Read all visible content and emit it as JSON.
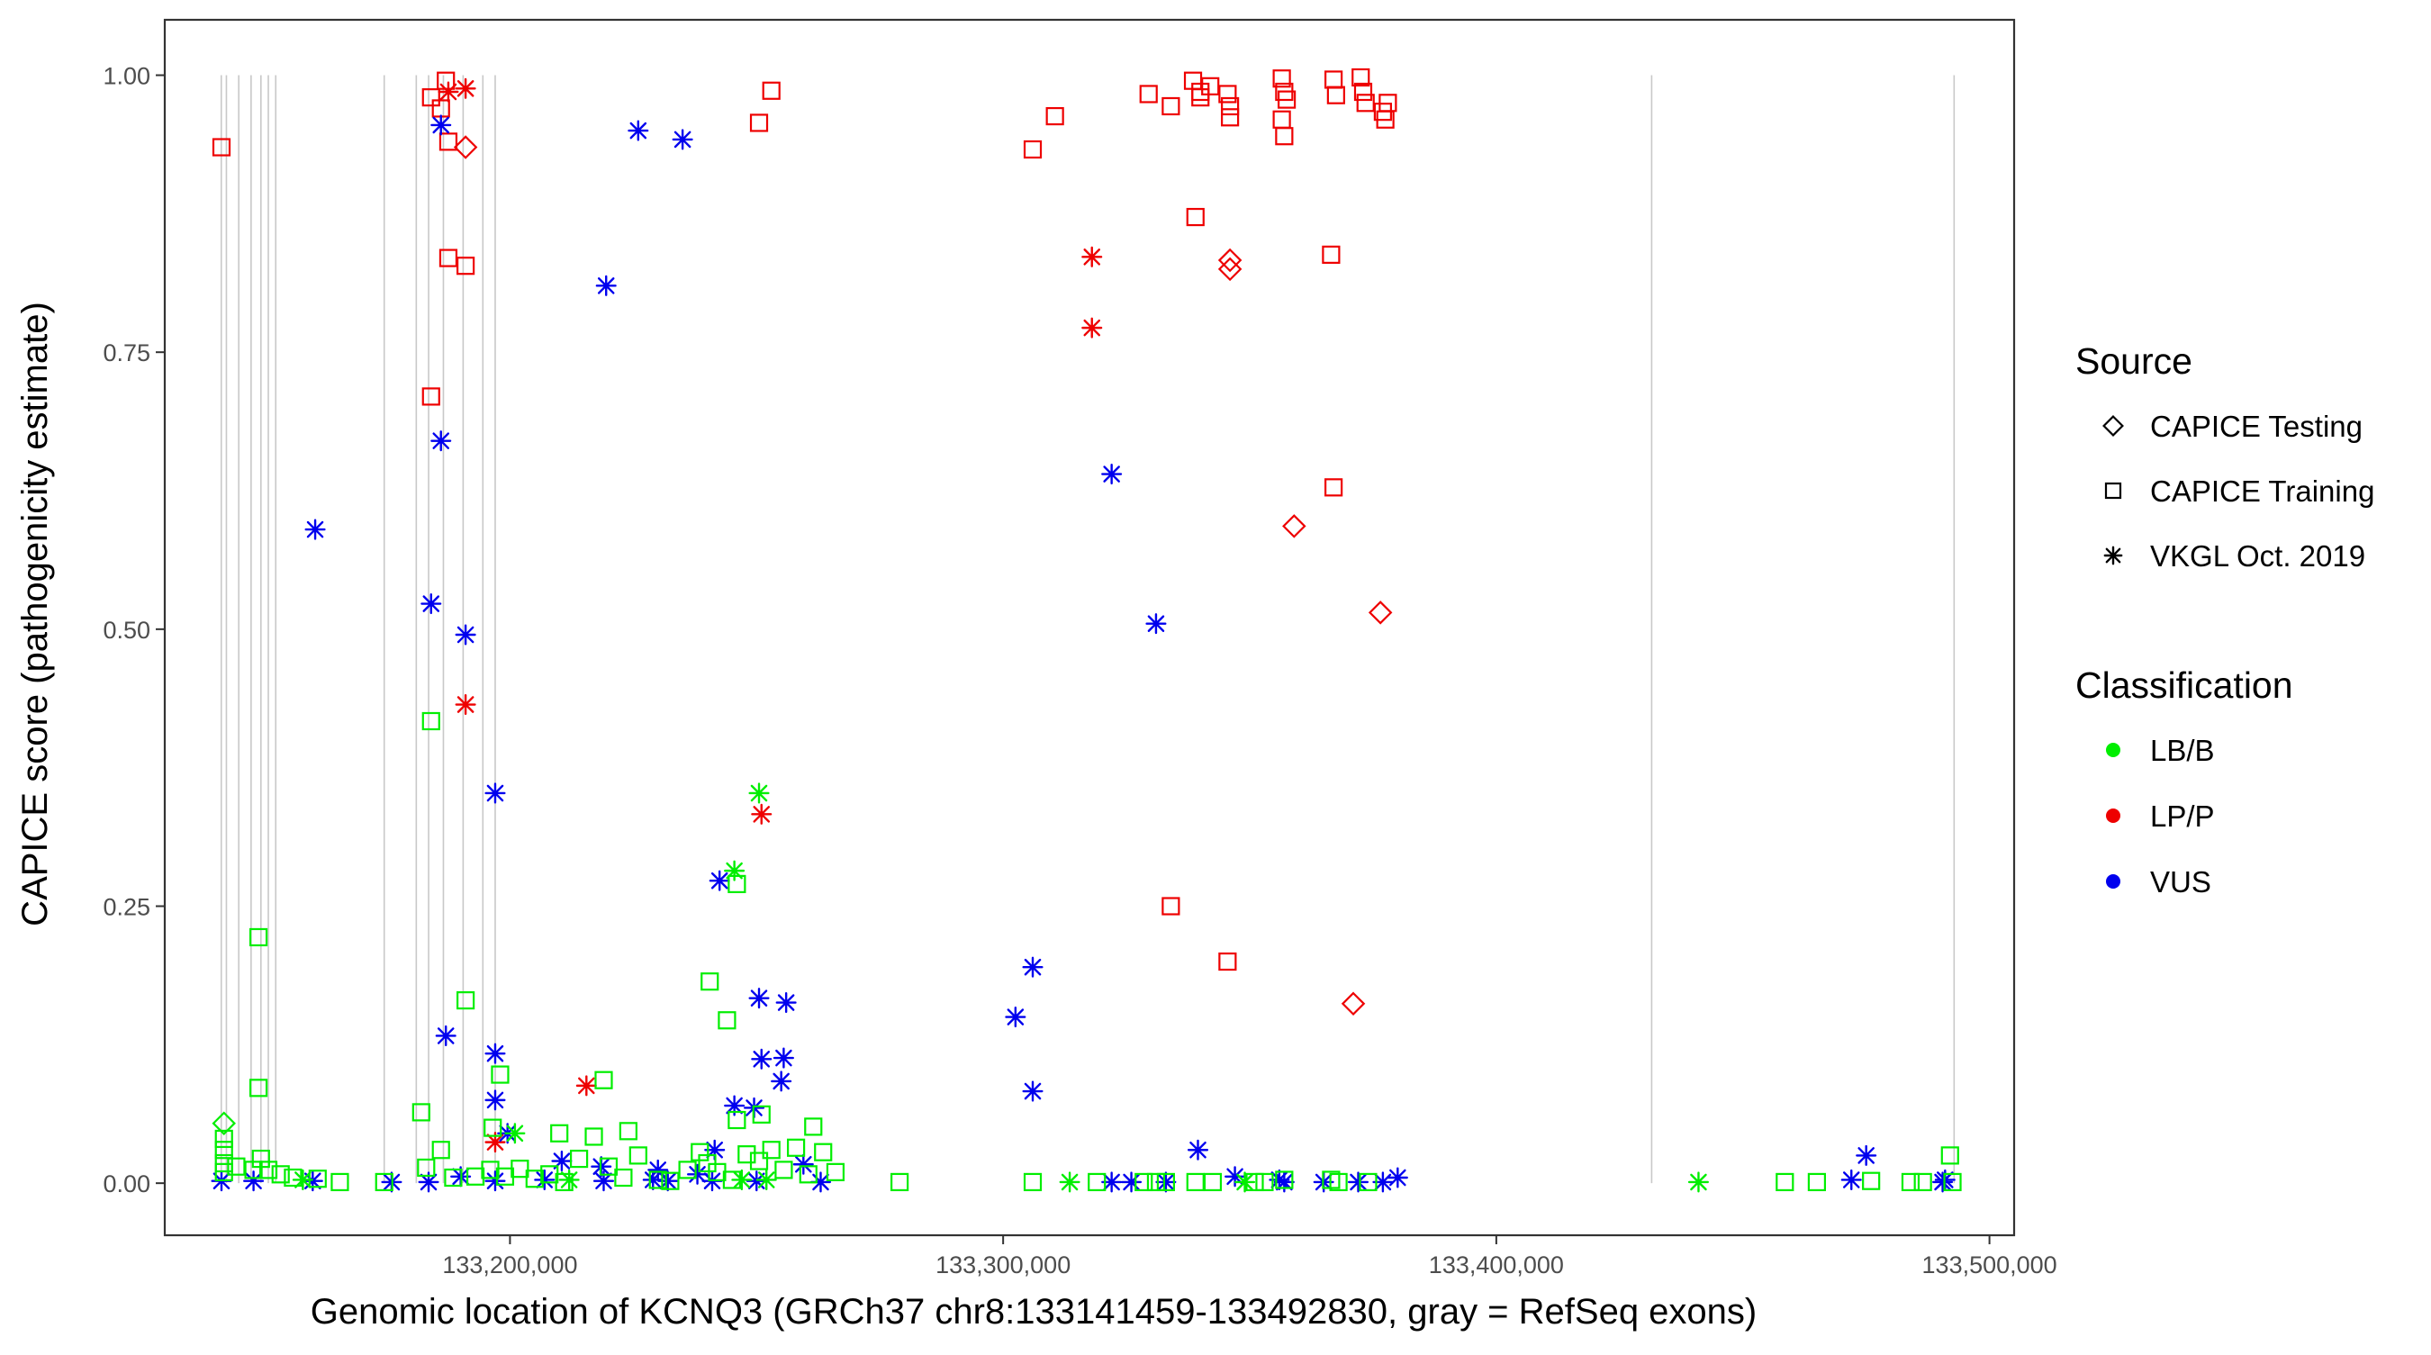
{
  "chart_data": {
    "type": "scatter",
    "xlabel": "Genomic location of KCNQ3 (GRCh37 chr8:133141459-133492830, gray = RefSeq exons)",
    "ylabel": "CAPICE score (pathogenicity estimate)",
    "xlim": [
      133130000,
      133505000
    ],
    "ylim": [
      -0.047,
      1.05
    ],
    "x_ticks": [
      133200000,
      133300000,
      133400000,
      133500000
    ],
    "x_tick_labels": [
      "133,200,000",
      "133,300,000",
      "133,400,000",
      "133,500,000"
    ],
    "y_ticks": [
      0,
      0.25,
      0.5,
      0.75,
      1.0
    ],
    "y_tick_labels": [
      "0.00",
      "0.25",
      "0.50",
      "0.75",
      "1.00"
    ],
    "grid": false,
    "exons": [
      133141459,
      133142500,
      133145000,
      133147500,
      133149500,
      133151000,
      133152500,
      133174500,
      133181000,
      133183500,
      133186500,
      133190500,
      133194500,
      133197000,
      133431500,
      133492830
    ],
    "colors": {
      "LB/B": "#00ee00",
      "LP/P": "#ee0000",
      "VUS": "#0000ee"
    },
    "legend": {
      "source_title": "Source",
      "source_items": [
        {
          "label": "CAPICE Testing",
          "shape": "diamond"
        },
        {
          "label": "CAPICE Training",
          "shape": "square"
        },
        {
          "label": "VKGL Oct. 2019",
          "shape": "asterisk"
        }
      ],
      "class_title": "Classification",
      "class_items": [
        {
          "label": "LB/B",
          "color": "#00ee00"
        },
        {
          "label": "LP/P",
          "color": "#ee0000"
        },
        {
          "label": "VUS",
          "color": "#0000ee"
        }
      ]
    },
    "series": [
      {
        "name": "CAPICE Training - LP/P",
        "shape": "square",
        "class": "LP/P",
        "points": [
          [
            133141500,
            0.935
          ],
          [
            133184000,
            0.98
          ],
          [
            133186000,
            0.97
          ],
          [
            133187000,
            0.995
          ],
          [
            133187500,
            0.94
          ],
          [
            133187500,
            0.835
          ],
          [
            133191000,
            0.828
          ],
          [
            133184000,
            0.71
          ],
          [
            133250500,
            0.957
          ],
          [
            133253000,
            0.986
          ],
          [
            133306000,
            0.933
          ],
          [
            133310500,
            0.963
          ],
          [
            133329500,
            0.983
          ],
          [
            133334000,
            0.972
          ],
          [
            133338500,
            0.995
          ],
          [
            133340000,
            0.985
          ],
          [
            133340000,
            0.98
          ],
          [
            133342000,
            0.99
          ],
          [
            133345500,
            0.983
          ],
          [
            133346000,
            0.972
          ],
          [
            133346000,
            0.962
          ],
          [
            133356500,
            0.997
          ],
          [
            133357000,
            0.985
          ],
          [
            133357500,
            0.978
          ],
          [
            133356500,
            0.96
          ],
          [
            133357000,
            0.945
          ],
          [
            133367000,
            0.996
          ],
          [
            133367500,
            0.982
          ],
          [
            133372500,
            0.998
          ],
          [
            133373000,
            0.985
          ],
          [
            133373500,
            0.975
          ],
          [
            133377000,
            0.967
          ],
          [
            133377500,
            0.96
          ],
          [
            133378000,
            0.975
          ],
          [
            133339000,
            0.872
          ],
          [
            133366500,
            0.838
          ],
          [
            133367000,
            0.628
          ],
          [
            133334000,
            0.25
          ],
          [
            133345500,
            0.2
          ]
        ]
      },
      {
        "name": "CAPICE Testing - LP/P",
        "shape": "diamond",
        "class": "LP/P",
        "points": [
          [
            133191000,
            0.935
          ],
          [
            133346000,
            0.833
          ],
          [
            133346000,
            0.825
          ],
          [
            133359000,
            0.593
          ],
          [
            133376500,
            0.515
          ],
          [
            133371000,
            0.162
          ]
        ]
      },
      {
        "name": "VKGL Oct. 2019 - LP/P",
        "shape": "asterisk",
        "class": "LP/P",
        "points": [
          [
            133187500,
            0.985
          ],
          [
            133191000,
            0.988
          ],
          [
            133318000,
            0.836
          ],
          [
            133318000,
            0.772
          ],
          [
            133191000,
            0.432
          ],
          [
            133251000,
            0.333
          ],
          [
            133215500,
            0.088
          ],
          [
            133197000,
            0.037
          ]
        ]
      },
      {
        "name": "VKGL Oct. 2019 - VUS",
        "shape": "asterisk",
        "class": "VUS",
        "points": [
          [
            133186000,
            0.955
          ],
          [
            133226000,
            0.95
          ],
          [
            133235000,
            0.942
          ],
          [
            133219500,
            0.81
          ],
          [
            133186000,
            0.67
          ],
          [
            133160500,
            0.59
          ],
          [
            133322000,
            0.64
          ],
          [
            133184000,
            0.523
          ],
          [
            133331000,
            0.505
          ],
          [
            133191000,
            0.495
          ],
          [
            133197000,
            0.352
          ],
          [
            133242500,
            0.273
          ],
          [
            133306000,
            0.195
          ],
          [
            133250500,
            0.167
          ],
          [
            133256000,
            0.163
          ],
          [
            133302500,
            0.15
          ],
          [
            133187000,
            0.133
          ],
          [
            133197000,
            0.117
          ],
          [
            133251000,
            0.112
          ],
          [
            133255500,
            0.113
          ],
          [
            133255000,
            0.092
          ],
          [
            133306000,
            0.083
          ],
          [
            133197000,
            0.075
          ],
          [
            133245500,
            0.07
          ],
          [
            133249500,
            0.068
          ],
          [
            133199500,
            0.045
          ],
          [
            133241500,
            0.03
          ],
          [
            133339500,
            0.03
          ],
          [
            133475000,
            0.025
          ],
          [
            133210500,
            0.02
          ],
          [
            133230000,
            0.012
          ],
          [
            133218500,
            0.015
          ],
          [
            133229000,
            0.003
          ],
          [
            133238000,
            0.008
          ],
          [
            133259500,
            0.017
          ],
          [
            133141500,
            0.002
          ],
          [
            133148000,
            0.002
          ],
          [
            133160000,
            0.002
          ],
          [
            133176000,
            0.001
          ],
          [
            133183500,
            0.001
          ],
          [
            133190000,
            0.006
          ],
          [
            133197000,
            0.002
          ],
          [
            133207000,
            0.003
          ],
          [
            133219000,
            0.002
          ],
          [
            133232000,
            0.002
          ],
          [
            133241000,
            0.002
          ],
          [
            133250000,
            0.002
          ],
          [
            133263000,
            0.001
          ],
          [
            133322000,
            0.001
          ],
          [
            133326000,
            0.001
          ],
          [
            133333000,
            0.001
          ],
          [
            133347000,
            0.006
          ],
          [
            133356000,
            0.003
          ],
          [
            133357000,
            0.001
          ],
          [
            133365000,
            0.001
          ],
          [
            133372000,
            0.001
          ],
          [
            133377000,
            0.001
          ],
          [
            133380000,
            0.005
          ],
          [
            133472000,
            0.003
          ],
          [
            133490500,
            0.001
          ],
          [
            133491000,
            0.003
          ]
        ]
      },
      {
        "name": "CAPICE Training - LB/B",
        "shape": "square",
        "class": "LB/B",
        "points": [
          [
            133184000,
            0.417
          ],
          [
            133149000,
            0.222
          ],
          [
            133240500,
            0.182
          ],
          [
            133191000,
            0.165
          ],
          [
            133244000,
            0.147
          ],
          [
            133149000,
            0.086
          ],
          [
            133198000,
            0.098
          ],
          [
            133246000,
            0.27
          ],
          [
            133219000,
            0.093
          ],
          [
            133182000,
            0.064
          ],
          [
            133251000,
            0.062
          ],
          [
            133246000,
            0.057
          ],
          [
            133196500,
            0.05
          ],
          [
            133210000,
            0.045
          ],
          [
            133224000,
            0.047
          ],
          [
            133261500,
            0.051
          ],
          [
            133142000,
            0.04
          ],
          [
            133142000,
            0.03
          ],
          [
            133186000,
            0.03
          ],
          [
            133142000,
            0.018
          ],
          [
            133142000,
            0.01
          ],
          [
            133144500,
            0.015
          ],
          [
            133148000,
            0.012
          ],
          [
            133151000,
            0.012
          ],
          [
            133149500,
            0.022
          ],
          [
            133153500,
            0.008
          ],
          [
            133156000,
            0.005
          ],
          [
            133161000,
            0.004
          ],
          [
            133165500,
            0.001
          ],
          [
            133174500,
            0.001
          ],
          [
            133183000,
            0.014
          ],
          [
            133188500,
            0.005
          ],
          [
            133193000,
            0.006
          ],
          [
            133196000,
            0.012
          ],
          [
            133199000,
            0.006
          ],
          [
            133202000,
            0.013
          ],
          [
            133205000,
            0.004
          ],
          [
            133208000,
            0.008
          ],
          [
            133211000,
            0.001
          ],
          [
            133214000,
            0.022
          ],
          [
            133217000,
            0.042
          ],
          [
            133220000,
            0.015
          ],
          [
            133223000,
            0.005
          ],
          [
            133226000,
            0.025
          ],
          [
            133230000,
            0.003
          ],
          [
            133232500,
            0.002
          ],
          [
            133236000,
            0.012
          ],
          [
            133238500,
            0.028
          ],
          [
            133240000,
            0.018
          ],
          [
            133242000,
            0.01
          ],
          [
            133245000,
            0.003
          ],
          [
            133248000,
            0.026
          ],
          [
            133250500,
            0.02
          ],
          [
            133253000,
            0.03
          ],
          [
            133255500,
            0.012
          ],
          [
            133258000,
            0.032
          ],
          [
            133260500,
            0.008
          ],
          [
            133263500,
            0.028
          ],
          [
            133266000,
            0.01
          ],
          [
            133279000,
            0.001
          ],
          [
            133306000,
            0.001
          ],
          [
            133319000,
            0.001
          ],
          [
            133328500,
            0.001
          ],
          [
            133331000,
            0.001
          ],
          [
            133333000,
            0.001
          ],
          [
            133339000,
            0.001
          ],
          [
            133342500,
            0.001
          ],
          [
            133351000,
            0.001
          ],
          [
            133353000,
            0.001
          ],
          [
            133357000,
            0.003
          ],
          [
            133366500,
            0.003
          ],
          [
            133368000,
            0.001
          ],
          [
            133374000,
            0.001
          ],
          [
            133458500,
            0.001
          ],
          [
            133465000,
            0.001
          ],
          [
            133476000,
            0.002
          ],
          [
            133484000,
            0.001
          ],
          [
            133486500,
            0.001
          ],
          [
            133492000,
            0.025
          ],
          [
            133492500,
            0.001
          ]
        ]
      },
      {
        "name": "CAPICE Testing - LB/B",
        "shape": "diamond",
        "class": "LB/B",
        "points": [
          [
            133142000,
            0.054
          ]
        ]
      },
      {
        "name": "VKGL Oct. 2019 - LB/B",
        "shape": "asterisk",
        "class": "LB/B",
        "points": [
          [
            133250500,
            0.352
          ],
          [
            133245500,
            0.282
          ],
          [
            133201000,
            0.045
          ],
          [
            133313500,
            0.001
          ],
          [
            133349000,
            0.001
          ],
          [
            133441000,
            0.001
          ],
          [
            133158000,
            0.003
          ],
          [
            133212000,
            0.003
          ],
          [
            133247000,
            0.003
          ],
          [
            133252000,
            0.003
          ]
        ]
      }
    ]
  }
}
